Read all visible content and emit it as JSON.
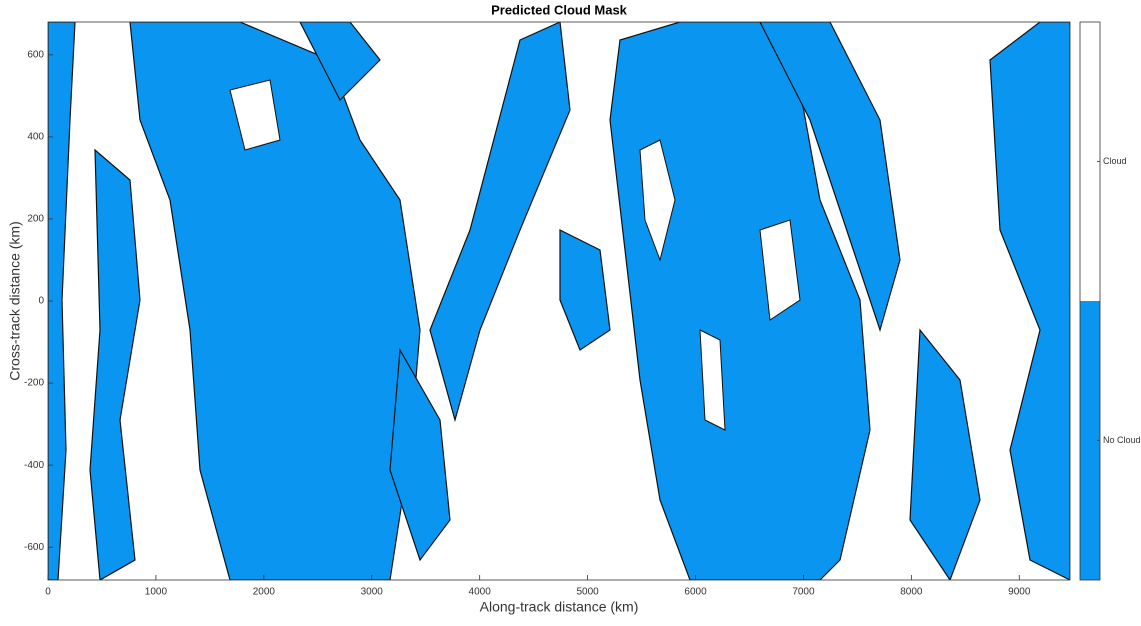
{
  "chart_data": {
    "type": "heatmap",
    "title": "Predicted Cloud Mask",
    "xlabel": "Along-track distance (km)",
    "ylabel": "Cross-track distance (km)",
    "xlim": [
      0,
      9470
    ],
    "ylim": [
      -680,
      680
    ],
    "xticks": [
      0,
      1000,
      2000,
      3000,
      4000,
      5000,
      6000,
      7000,
      8000,
      9000
    ],
    "yticks": [
      -600,
      -400,
      -200,
      0,
      200,
      400,
      600
    ],
    "colorbar": {
      "categories": [
        "No Cloud",
        "Cloud"
      ],
      "colors": [
        "#0a96f0",
        "#ffffff"
      ]
    }
  }
}
